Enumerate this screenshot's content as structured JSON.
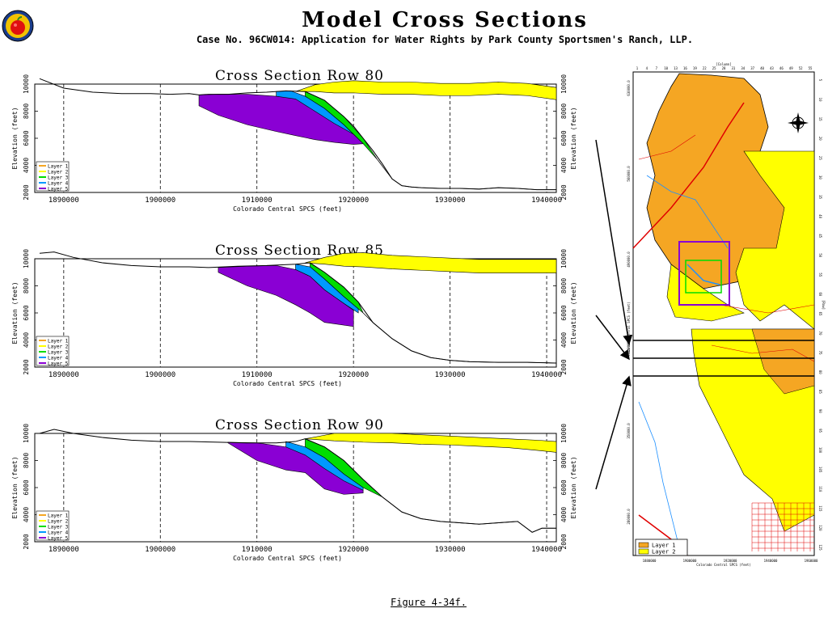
{
  "header": {
    "title": "Model Cross Sections",
    "subtitle": "Case No. 96CW014: Application for Water Rights by Park County Sportsmen's Ranch, LLP."
  },
  "figure_caption": "Figure 4-34f.",
  "colors": {
    "layer1": "#f5a623",
    "layer2": "#ffff00",
    "layer3": "#00dd00",
    "layer4": "#0099ff",
    "layer5": "#8a00d4"
  },
  "chart_data": [
    {
      "type": "area",
      "title": "Cross Section Row 80",
      "xlabel": "Colorado Central SPCS (feet)",
      "ylabel": "Elevation (feet)",
      "xlim": [
        1887000,
        1941000
      ],
      "ylim": [
        2000,
        10000
      ],
      "xticks": [
        1890000,
        1900000,
        1910000,
        1920000,
        1930000,
        1940000
      ],
      "xtick_labels": [
        "1890000",
        "1900000",
        "1910000",
        "1920000",
        "1930000",
        "1940000"
      ],
      "yticks": [
        2000,
        4000,
        6000,
        8000,
        10000
      ],
      "ytick_labels": [
        "2000",
        "4000",
        "6000",
        "8000",
        "10000"
      ],
      "grid": "vertical-dashed",
      "legend_position": "bottom-left",
      "legend": [
        "Layer 1",
        "Layer 2",
        "Layer 3",
        "Layer 4",
        "Layer 5"
      ],
      "surface": {
        "x": [
          1887500,
          1890000,
          1893000,
          1896000,
          1899000,
          1901000,
          1903000,
          1904000,
          1905000,
          1907000,
          1909000,
          1911000,
          1913000,
          1915000,
          1917000,
          1919000,
          1920000,
          1921000,
          1922000,
          1923000,
          1924000,
          1925000,
          1926000,
          1927000,
          1929000,
          1931000,
          1933000,
          1935000,
          1937000,
          1939000,
          1941000
        ],
        "y": [
          10400,
          9700,
          9400,
          9300,
          9300,
          9250,
          9300,
          9200,
          9250,
          9250,
          9350,
          9400,
          9500,
          9450,
          8800,
          7600,
          6900,
          6000,
          5100,
          4100,
          3000,
          2500,
          2400,
          2350,
          2300,
          2300,
          2250,
          2350,
          2300,
          2200,
          2200
        ]
      },
      "bottom": {
        "x": [
          1922500,
          1924000,
          1925000,
          1926000,
          1927000,
          1929000,
          1931000,
          1933000,
          1935000,
          1937000,
          1939000,
          1941000
        ],
        "y": [
          4400,
          3000,
          2500,
          2400,
          2350,
          2300,
          2300,
          2250,
          2350,
          2300,
          2200,
          2200
        ]
      },
      "layers": [
        {
          "name": "Layer 2",
          "x": [
            1914000,
            1916000,
            1918000,
            1920000,
            1923000,
            1926000,
            1929000,
            1932000,
            1935000,
            1938000,
            1941000
          ],
          "top": [
            9450,
            9950,
            10150,
            10250,
            10150,
            10150,
            10050,
            10050,
            10150,
            10050,
            9750
          ],
          "bot": [
            9450,
            9450,
            9350,
            9350,
            9250,
            9250,
            9150,
            9150,
            9250,
            9150,
            8850
          ]
        },
        {
          "name": "Layer 3",
          "x": [
            1915000,
            1917000,
            1919000,
            1921000,
            1922500
          ],
          "top": [
            9450,
            8800,
            7600,
            6000,
            4400
          ],
          "bot": [
            9100,
            8200,
            7000,
            5600,
            4400
          ]
        },
        {
          "name": "Layer 4",
          "x": [
            1912000,
            1913500,
            1915000,
            1917000,
            1919000,
            1921000
          ],
          "top": [
            9450,
            9500,
            9100,
            8200,
            7000,
            5600
          ],
          "bot": [
            9100,
            8900,
            8000,
            7100,
            6300,
            5600
          ]
        },
        {
          "name": "Layer 5",
          "x": [
            1904000,
            1906000,
            1909000,
            1912000,
            1914000,
            1916000,
            1918000,
            1920000,
            1921000
          ],
          "top": [
            9200,
            9250,
            9250,
            9100,
            8900,
            8000,
            7100,
            6300,
            5600
          ],
          "bot": [
            8400,
            7700,
            7000,
            6500,
            6200,
            5900,
            5700,
            5550,
            5600
          ]
        }
      ]
    },
    {
      "type": "area",
      "title": "Cross Section Row 85",
      "xlabel": "Colorado Central SPCS (feet)",
      "ylabel": "Elevation (feet)",
      "xlim": [
        1887000,
        1941000
      ],
      "ylim": [
        2000,
        10000
      ],
      "xticks": [
        1890000,
        1900000,
        1910000,
        1920000,
        1930000,
        1940000
      ],
      "xtick_labels": [
        "1890000",
        "1900000",
        "1910000",
        "1920000",
        "1930000",
        "1940000"
      ],
      "yticks": [
        2000,
        4000,
        6000,
        8000,
        10000
      ],
      "ytick_labels": [
        "2000",
        "4000",
        "6000",
        "8000",
        "10000"
      ],
      "grid": "vertical-dashed",
      "legend_position": "bottom-left",
      "legend": [
        "Layer 1",
        "Layer 2",
        "Layer 3",
        "Layer 4",
        "Layer 5"
      ],
      "surface": {
        "x": [
          1887500,
          1889000,
          1891000,
          1894000,
          1897000,
          1900000,
          1903000,
          1905000,
          1908000,
          1911000,
          1914000,
          1915500,
          1917000,
          1919000,
          1920500,
          1922000,
          1924000,
          1926000,
          1928000,
          1930000,
          1932000,
          1935000,
          1938000,
          1941000
        ],
        "y": [
          10400,
          10500,
          10100,
          9700,
          9500,
          9400,
          9400,
          9350,
          9450,
          9500,
          9600,
          9700,
          9000,
          7900,
          6800,
          5300,
          4100,
          3200,
          2700,
          2500,
          2400,
          2350,
          2350,
          2300
        ]
      },
      "bottom": {
        "x": [
          1921000,
          1922000,
          1924000,
          1926000,
          1928000,
          1930000,
          1932000,
          1935000,
          1938000,
          1941000
        ],
        "y": [
          6000,
          5300,
          4100,
          3200,
          2700,
          2500,
          2400,
          2350,
          2350,
          2300
        ]
      },
      "layers": [
        {
          "name": "Layer 2",
          "x": [
            1915000,
            1917000,
            1919000,
            1921000,
            1924000,
            1927000,
            1930000,
            1933000,
            1936000,
            1939000,
            1941000
          ],
          "top": [
            9700,
            10100,
            10400,
            10450,
            10250,
            10150,
            10050,
            9950,
            9950,
            9950,
            9950
          ],
          "bot": [
            9700,
            9600,
            9450,
            9400,
            9250,
            9150,
            9050,
            8950,
            8950,
            8950,
            8950
          ]
        },
        {
          "name": "Layer 3",
          "x": [
            1915500,
            1917000,
            1919000,
            1920500,
            1921000
          ],
          "top": [
            9700,
            9000,
            7900,
            6800,
            6000
          ],
          "bot": [
            9400,
            8500,
            7200,
            6300,
            6000
          ]
        },
        {
          "name": "Layer 4",
          "x": [
            1914000,
            1915500,
            1917000,
            1919000,
            1920500
          ],
          "top": [
            9600,
            9400,
            8500,
            7200,
            6300
          ],
          "bot": [
            9200,
            8700,
            7700,
            6700,
            6000
          ]
        },
        {
          "name": "Layer 5",
          "x": [
            1906000,
            1909000,
            1912000,
            1914000,
            1915500,
            1917000,
            1920000
          ],
          "top": [
            9350,
            9450,
            9500,
            9200,
            8700,
            7700,
            6200
          ],
          "bot": [
            9000,
            8000,
            7300,
            6600,
            6000,
            5300,
            5000
          ]
        }
      ]
    },
    {
      "type": "area",
      "title": "Cross Section Row 90",
      "xlabel": "Colorado Central SPCS (feet)",
      "ylabel": "Elevation (feet)",
      "xlim": [
        1887000,
        1941000
      ],
      "ylim": [
        2000,
        10000
      ],
      "xticks": [
        1890000,
        1900000,
        1910000,
        1920000,
        1930000,
        1940000
      ],
      "xtick_labels": [
        "1890000",
        "1900000",
        "1910000",
        "1920000",
        "1930000",
        "1940000"
      ],
      "yticks": [
        2000,
        4000,
        6000,
        8000,
        10000
      ],
      "ytick_labels": [
        "2000",
        "4000",
        "6000",
        "8000",
        "10000"
      ],
      "grid": "vertical-dashed",
      "legend_position": "bottom-left",
      "legend": [
        "Layer 1",
        "Layer 2",
        "Layer 3",
        "Layer 4",
        "Layer 5"
      ],
      "surface": {
        "x": [
          1887500,
          1889000,
          1891000,
          1894000,
          1897000,
          1900000,
          1903000,
          1906000,
          1909000,
          1912000,
          1914000,
          1915000,
          1917000,
          1919000,
          1921000,
          1923000,
          1925000,
          1927000,
          1929000,
          1931000,
          1933000,
          1935000,
          1937000,
          1938500,
          1939500,
          1941000
        ],
        "y": [
          10000,
          10300,
          10000,
          9700,
          9500,
          9400,
          9400,
          9350,
          9300,
          9300,
          9400,
          9600,
          9000,
          8000,
          6600,
          5300,
          4200,
          3700,
          3500,
          3400,
          3300,
          3400,
          3500,
          2700,
          3000,
          3000
        ]
      },
      "bottom": {
        "x": [
          1923000,
          1925000,
          1927000,
          1929000,
          1931000,
          1933000,
          1935000,
          1937000,
          1938500,
          1939500,
          1941000
        ],
        "y": [
          5300,
          4200,
          3700,
          3500,
          3400,
          3300,
          3400,
          3500,
          2700,
          3000,
          3000
        ]
      },
      "layers": [
        {
          "name": "Layer 2",
          "x": [
            1915000,
            1918000,
            1921000,
            1924000,
            1927000,
            1930000,
            1933000,
            1936000,
            1939000,
            1941000
          ],
          "top": [
            9600,
            10000,
            10000,
            10000,
            9900,
            9800,
            9700,
            9600,
            9500,
            9400
          ],
          "bot": [
            9600,
            9450,
            9350,
            9300,
            9200,
            9150,
            9050,
            8950,
            8750,
            8600
          ]
        },
        {
          "name": "Layer 3",
          "x": [
            1915000,
            1917000,
            1919000,
            1921000,
            1923000
          ],
          "top": [
            9600,
            9000,
            8000,
            6600,
            5300
          ],
          "bot": [
            9000,
            8200,
            7000,
            6000,
            5300
          ]
        },
        {
          "name": "Layer 4",
          "x": [
            1913000,
            1915000,
            1917000,
            1919000,
            1921000
          ],
          "top": [
            9400,
            9000,
            8200,
            7000,
            6000
          ],
          "bot": [
            8800,
            8000,
            7200,
            6300,
            5800
          ]
        },
        {
          "name": "Layer 5",
          "x": [
            1907000,
            1910000,
            1913000,
            1915000,
            1917000,
            1919000,
            1921000
          ],
          "top": [
            9350,
            9300,
            9000,
            8400,
            7400,
            6500,
            5800
          ],
          "bot": [
            9300,
            8000,
            7300,
            7100,
            5900,
            5500,
            5600
          ]
        }
      ]
    }
  ],
  "map": {
    "top_label": "[Column]",
    "col_ticks": [
      "1",
      "4",
      "7",
      "10",
      "13",
      "16",
      "19",
      "22",
      "25",
      "28",
      "31",
      "34",
      "37",
      "40",
      "43",
      "46",
      "49",
      "52",
      "55"
    ],
    "row_ticks": [
      "5",
      "10",
      "15",
      "20",
      "25",
      "30",
      "35",
      "40",
      "45",
      "50",
      "55",
      "60",
      "65",
      "70",
      "75",
      "80",
      "85",
      "90",
      "95",
      "100",
      "105",
      "110",
      "115",
      "120",
      "125"
    ],
    "right_label": "[Row]",
    "left_label": "Colorado Central SPCS (feet)",
    "left_ticks": [
      "630000.0",
      "560000.0",
      "490000.0",
      "420000.0",
      "350000.0",
      "280000.0"
    ],
    "bottom_ticks": [
      "1880000",
      "1900000",
      "1920000",
      "1940000",
      "1960000"
    ],
    "bottom_label": "Colorado Central SPCS (feet)",
    "legend": [
      "Layer 1",
      "Layer 2"
    ],
    "section_rows": [
      "Row 80",
      "Row 85",
      "Row 90"
    ]
  }
}
